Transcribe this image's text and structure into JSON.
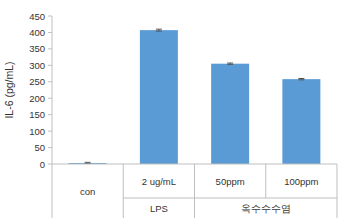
{
  "chart_data": {
    "type": "bar",
    "y_label": "IL-6 (pg/mL)",
    "categories": [
      "con",
      "2 ug/mL",
      "50ppm",
      "100ppm"
    ],
    "group_labels": [
      null,
      "LPS",
      "옥수수수염",
      "옥수수수염"
    ],
    "values": [
      3,
      407,
      305,
      258
    ],
    "errors": [
      2,
      3,
      2,
      2
    ],
    "color": "#5b9bd5",
    "ylim": [
      0,
      450
    ],
    "yticks": [
      0,
      50,
      100,
      150,
      200,
      250,
      300,
      350,
      400,
      450
    ],
    "grid": false
  }
}
